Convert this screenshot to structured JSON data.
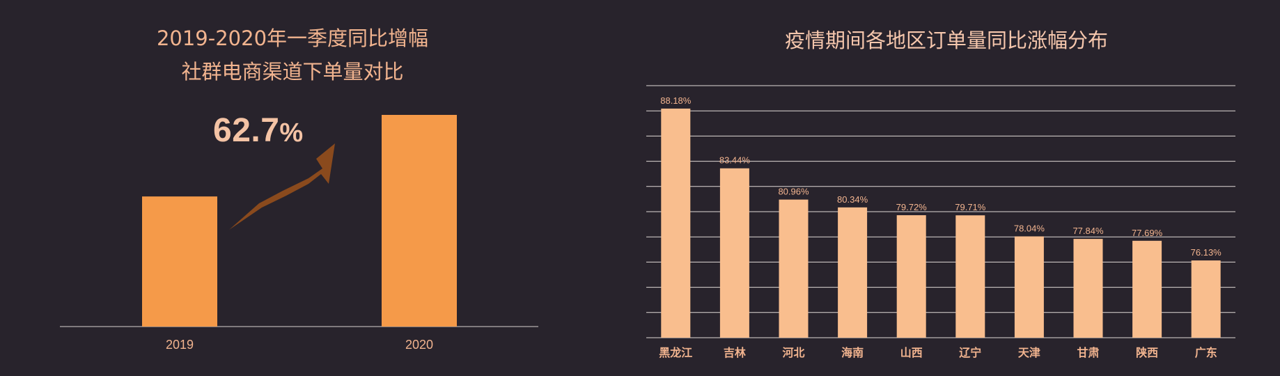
{
  "left": {
    "title_line1": "2019-2020年一季度同比增幅",
    "title_line2": "社群电商渠道下单量对比",
    "growth_value": "62.7",
    "growth_unit": "%",
    "arrow_icon": "growth-arrow-icon"
  },
  "right": {
    "title": "疫情期间各地区订单量同比涨幅分布"
  },
  "colors": {
    "background": "#28232c",
    "left_bar": "#f59a49",
    "right_bar": "#f9be8e",
    "arrow": "#8a4a1d",
    "title": "#f2b48f",
    "axis_label": "#f2b48f",
    "grid": "#e0dad6"
  },
  "chart_data": [
    {
      "type": "bar",
      "title": "2019-2020年一季度同比增幅 社群电商渠道下单量对比",
      "categories": [
        "2019",
        "2020"
      ],
      "values": [
        100,
        162.7
      ],
      "ylim": [
        0,
        170
      ],
      "annotations": [
        "62.7%"
      ],
      "grid": false
    },
    {
      "type": "bar",
      "title": "疫情期间各地区订单量同比涨幅分布",
      "categories": [
        "黑龙江",
        "吉林",
        "河北",
        "海南",
        "山西",
        "辽宁",
        "天津",
        "甘肃",
        "陕西",
        "广东"
      ],
      "values": [
        88.18,
        83.44,
        80.96,
        80.34,
        79.72,
        79.71,
        78.04,
        77.84,
        77.69,
        76.13
      ],
      "data_labels": [
        "88.18%",
        "83.44%",
        "80.96%",
        "80.34%",
        "79.72%",
        "79.71%",
        "78.04%",
        "77.84%",
        "77.69%",
        "76.13%"
      ],
      "ylim": [
        70,
        90
      ],
      "grid": true
    }
  ]
}
